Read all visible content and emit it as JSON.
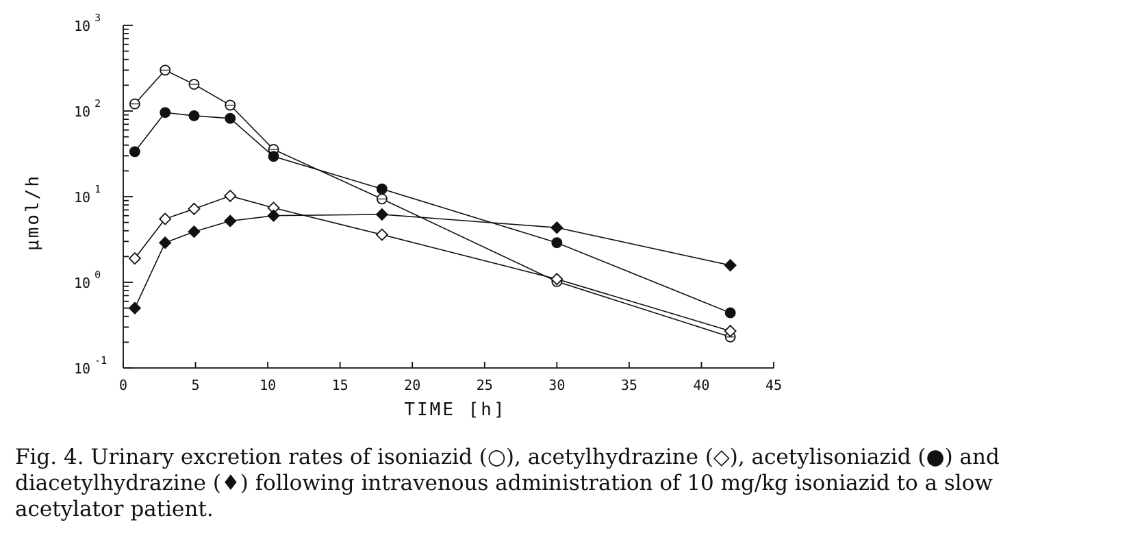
{
  "chart_data": {
    "type": "line",
    "xlabel": "TIME [h]",
    "ylabel": "μmol/h",
    "x_ticks": [
      "0",
      "5",
      "10",
      "15",
      "20",
      "25",
      "30",
      "35",
      "40",
      "45"
    ],
    "y_ticks": [
      {
        "base": "10",
        "exp": "3",
        "value": 1000
      },
      {
        "base": "10",
        "exp": "2",
        "value": 100
      },
      {
        "base": "10",
        "exp": "1",
        "value": 10
      },
      {
        "base": "10",
        "exp": "0",
        "value": 1
      },
      {
        "base": "10",
        "exp": "-1",
        "value": 0.1
      }
    ],
    "xlim": [
      0,
      45
    ],
    "ylim": [
      0.1,
      1000
    ],
    "yscale": "log",
    "grid": false,
    "series": [
      {
        "marker": "open-circle",
        "x": [
          0.8,
          2.9,
          4.9,
          7.4,
          10.4,
          17.9,
          30,
          42
        ],
        "y": [
          121,
          300,
          205,
          117,
          35.6,
          9.4,
          1.02,
          0.23
        ]
      },
      {
        "marker": "filled-circle",
        "x": [
          0.8,
          2.9,
          4.9,
          7.4,
          10.4,
          17.9,
          30,
          42
        ],
        "y": [
          33.5,
          96,
          88,
          82,
          29.5,
          12.3,
          2.9,
          0.44
        ]
      },
      {
        "marker": "open-diamond",
        "x": [
          0.8,
          2.9,
          4.9,
          7.4,
          10.4,
          17.9,
          30,
          42
        ],
        "y": [
          1.9,
          5.5,
          7.2,
          10.2,
          7.4,
          3.6,
          1.09,
          0.27
        ]
      },
      {
        "marker": "filled-diamond",
        "x": [
          0.8,
          2.9,
          4.9,
          7.4,
          10.4,
          17.9,
          30,
          42
        ],
        "y": [
          0.5,
          2.9,
          3.9,
          5.2,
          6.0,
          6.2,
          4.35,
          1.58
        ]
      }
    ]
  },
  "caption": {
    "line1": "Fig. 4. Urinary excretion rates of isoniazid (○), acetylhydrazine (◇), acetylisoniazid (●) and",
    "line2": "diacetylhydrazine (♦) following intravenous administration of 10 mg/kg isoniazid to a slow",
    "line3": "acetylator patient."
  }
}
